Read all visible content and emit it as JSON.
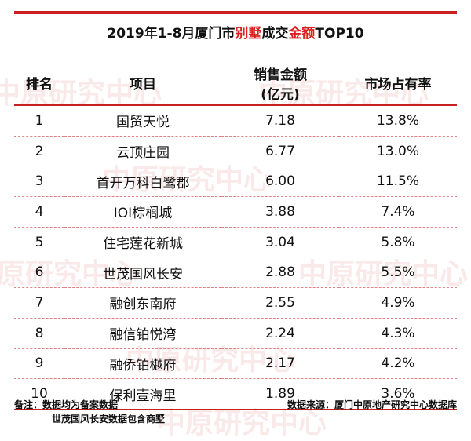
{
  "title": {
    "part1": "2019年1-8月厦门市",
    "part2": "别墅",
    "part3": "成交",
    "part4": "金额",
    "part5": "TOP10",
    "accent_color": "#d9211e"
  },
  "table": {
    "headers": {
      "rank": "排名",
      "project": "项目",
      "amount_line1": "销售金额",
      "amount_line2": "(亿元)",
      "share": "市场占有率"
    },
    "rows": [
      {
        "rank": "1",
        "project": "国贸天悦",
        "amount": "7.18",
        "share": "13.8%"
      },
      {
        "rank": "2",
        "project": "云顶庄园",
        "amount": "6.77",
        "share": "13.0%"
      },
      {
        "rank": "3",
        "project": "首开万科白鹭郡",
        "amount": "6.00",
        "share": "11.5%"
      },
      {
        "rank": "4",
        "project": "IOI棕榈城",
        "amount": "3.88",
        "share": "7.4%"
      },
      {
        "rank": "5",
        "project": "住宅莲花新城",
        "amount": "3.04",
        "share": "5.8%"
      },
      {
        "rank": "6",
        "project": "世茂国风长安",
        "amount": "2.88",
        "share": "5.5%"
      },
      {
        "rank": "7",
        "project": "融创东南府",
        "amount": "2.55",
        "share": "4.9%"
      },
      {
        "rank": "8",
        "project": "融信铂悦湾",
        "amount": "2.24",
        "share": "4.3%"
      },
      {
        "rank": "9",
        "project": "融侨铂樾府",
        "amount": "2.17",
        "share": "4.2%"
      },
      {
        "rank": "10",
        "project": "保利壹海里",
        "amount": "1.89",
        "share": "3.6%"
      }
    ]
  },
  "footer": {
    "note_line1": "备注：数据均为备案数据",
    "note_line2": "世茂国风长安数据包含商墅",
    "source": "数据来源：厦门中原地产研究中心数据库"
  },
  "watermark": {
    "text": "中原研究中心",
    "color": "#cd2828"
  }
}
